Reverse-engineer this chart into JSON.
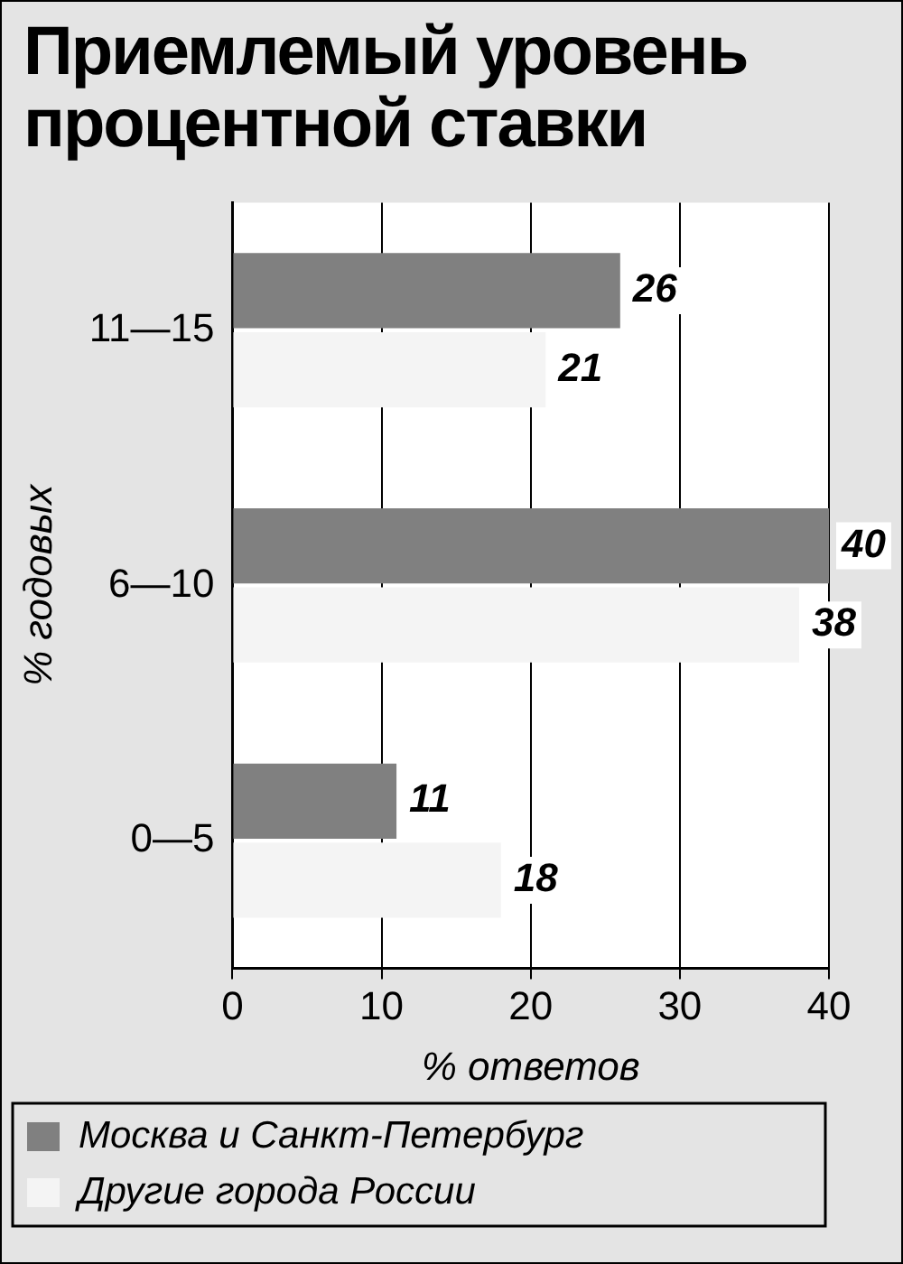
{
  "chart_data": {
    "type": "bar",
    "orientation": "horizontal",
    "title": "Приемлемый уровень процентной ставки",
    "xlabel": "% ответов",
    "ylabel": "% годовых",
    "categories": [
      "11—15",
      "6—10",
      "0—5"
    ],
    "series": [
      {
        "name": "Москва и Санкт-Петербург",
        "color": "#808080",
        "values": [
          26,
          40,
          11
        ]
      },
      {
        "name": "Другие города России",
        "color": "#f4f4f4",
        "values": [
          21,
          38,
          18
        ]
      }
    ],
    "xlim": [
      0,
      40
    ],
    "xticks": [
      0,
      10,
      20,
      30,
      40
    ],
    "grid": "x",
    "legend": "bottom",
    "data_labels": true
  }
}
